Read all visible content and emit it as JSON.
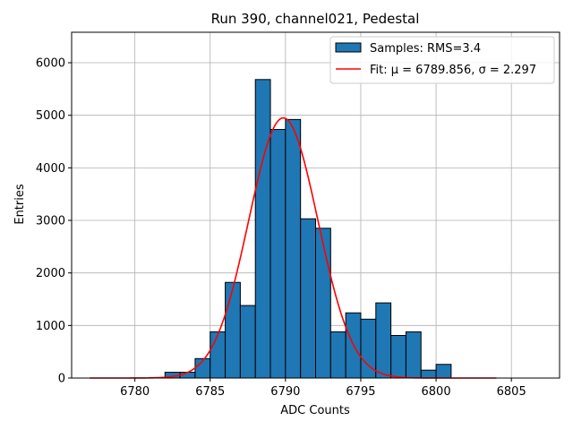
{
  "chart_data": {
    "type": "bar",
    "title": "Run 390, channel021, Pedestal",
    "xlabel": "ADC Counts",
    "ylabel": "Entries",
    "xlim": [
      6775.8,
      6808.2
    ],
    "ylim": [
      0,
      6580
    ],
    "x_ticks": [
      6780,
      6785,
      6790,
      6795,
      6800,
      6805
    ],
    "y_ticks": [
      0,
      1000,
      2000,
      3000,
      4000,
      5000,
      6000
    ],
    "grid": true,
    "legend_position": "top-right",
    "bar_width": 1,
    "bin_centers": [
      6781.5,
      6782.5,
      6783.5,
      6784.5,
      6785.5,
      6786.5,
      6787.5,
      6788.5,
      6789.5,
      6790.5,
      6791.5,
      6792.5,
      6793.5,
      6794.5,
      6795.5,
      6796.5,
      6797.5,
      6798.5,
      6799.5,
      6800.5
    ],
    "series": [
      {
        "name": "Samples: RMS=3.4",
        "type": "histogram",
        "color": "#1f77b4",
        "values": [
          10,
          110,
          110,
          370,
          880,
          1820,
          1380,
          5680,
          4730,
          4920,
          3030,
          2850,
          880,
          1240,
          1120,
          1430,
          810,
          880,
          150,
          260
        ]
      },
      {
        "name": "Fit: μ = 6789.856, σ = 2.297",
        "type": "gaussian",
        "color": "#ff0000",
        "amplitude": 4950,
        "mean": 6789.856,
        "sigma": 2.297,
        "x_range": [
          6777,
          6804
        ]
      }
    ]
  }
}
